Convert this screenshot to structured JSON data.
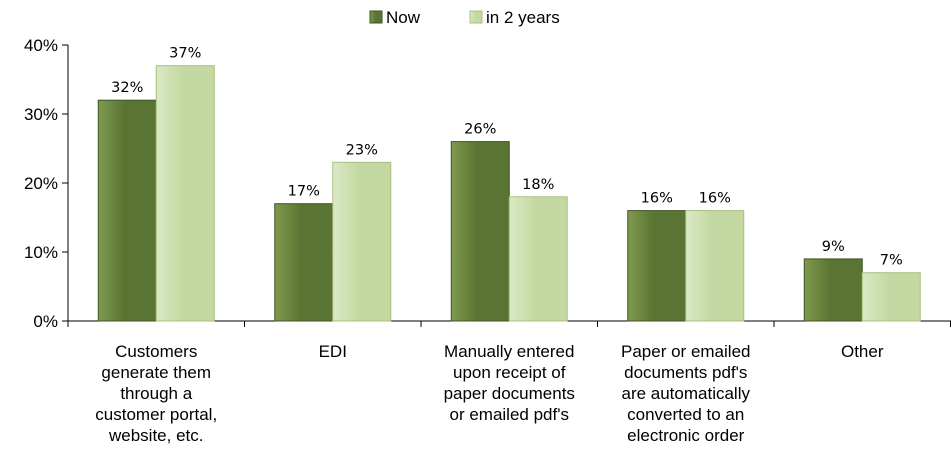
{
  "chart_data": {
    "type": "bar",
    "title": "",
    "xlabel": "",
    "ylabel": "",
    "categories": [
      "Customers generate them through a customer portal, website, etc.",
      "EDI",
      "Manually entered upon receipt of paper documents or emailed pdf's",
      "Paper or emailed documents pdf's are automatically converted to an electronic order",
      "Other"
    ],
    "category_lines": [
      [
        "Customers",
        "generate them",
        "through a",
        "customer portal,",
        "website, etc."
      ],
      [
        "EDI"
      ],
      [
        "Manually entered",
        "upon receipt of",
        "paper documents",
        "or emailed pdf's"
      ],
      [
        "Paper or emailed",
        "documents pdf's",
        "are automatically",
        "converted to an",
        "electronic order"
      ],
      [
        "Other"
      ]
    ],
    "series": [
      {
        "name": "Now",
        "values": [
          32,
          17,
          26,
          16,
          9
        ],
        "labels": [
          "32%",
          "17%",
          "26%",
          "16%",
          "9%"
        ],
        "color": "#5a7533",
        "color_light": "#7f9a4e"
      },
      {
        "name": "in 2 years",
        "values": [
          37,
          23,
          18,
          16,
          7
        ],
        "labels": [
          "37%",
          "23%",
          "18%",
          "16%",
          "7%"
        ],
        "color": "#c4d9a2",
        "color_light": "#dbe9c4"
      }
    ],
    "ylim": [
      0,
      40
    ],
    "yticks": [
      0,
      10,
      20,
      30,
      40
    ],
    "ytick_labels": [
      "0%",
      "10%",
      "20%",
      "30%",
      "40%"
    ],
    "grid": false,
    "legend_position": "top-center"
  }
}
